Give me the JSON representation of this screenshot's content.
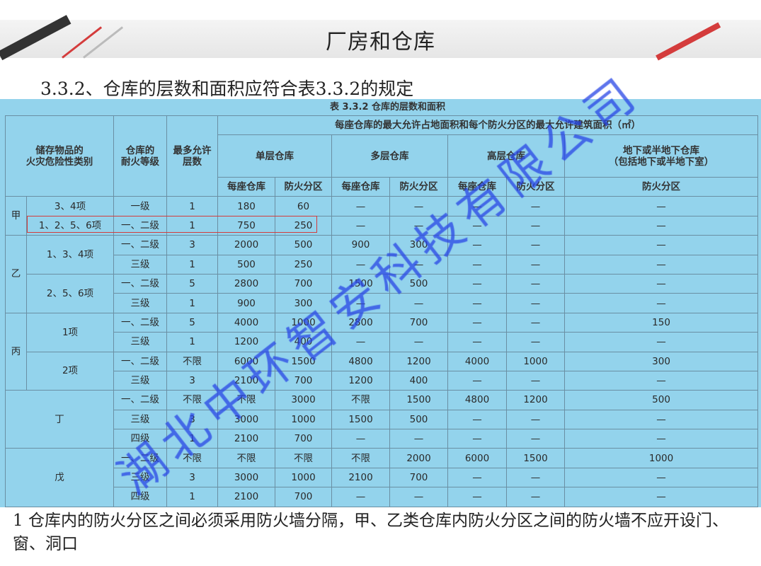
{
  "slide": {
    "title": "厂房和仓库",
    "subtitle": "3.3.2、仓库的层数和面积应符合表3.3.2的规定",
    "footer_note": "1 仓库内的防火分区之间必须采用防火墙分隔，甲、乙类仓库内防火分区之间的防火墙不应开设门、窗、洞口",
    "watermark": "湖北中环智安科技有限公司",
    "colors": {
      "accent_red": "#d43c3c",
      "table_bg": "#93d3ec",
      "watermark_blue": "#2846e6"
    }
  },
  "table": {
    "caption": "表 3.3.2   仓库的层数和面积",
    "headers": {
      "category": "储存物品的\n火灾危险性类别",
      "fire_grade": "仓库的\n耐火等级",
      "max_floors": "最多允许\n层数",
      "area_group": "每座仓库的最大允许占地面积和每个防火分区的最大允许建筑面积（㎡）",
      "single": "单层仓库",
      "multi": "多层仓库",
      "high": "高层仓库",
      "underground": "地下或半地下仓库\n（包括地下或半地下室）",
      "per_building": "每座仓库",
      "per_zone": "防火分区"
    },
    "groups": [
      {
        "category": "甲",
        "subs": [
          {
            "item": "3、4项",
            "rows": [
              [
                "一级",
                "1",
                "180",
                "60",
                "—",
                "—",
                "—",
                "—",
                "—"
              ]
            ]
          },
          {
            "item": "1、2、5、6项",
            "highlight": true,
            "rows": [
              [
                "一、二级",
                "1",
                "750",
                "250",
                "—",
                "—",
                "—",
                "—",
                "—"
              ]
            ]
          }
        ]
      },
      {
        "category": "乙",
        "subs": [
          {
            "item": "1、3、4项",
            "rows": [
              [
                "一、二级",
                "3",
                "2000",
                "500",
                "900",
                "300",
                "—",
                "—",
                "—"
              ],
              [
                "三级",
                "1",
                "500",
                "250",
                "—",
                "—",
                "—",
                "—",
                "—"
              ]
            ]
          },
          {
            "item": "2、5、6项",
            "rows": [
              [
                "一、二级",
                "5",
                "2800",
                "700",
                "1500",
                "500",
                "—",
                "—",
                "—"
              ],
              [
                "三级",
                "1",
                "900",
                "300",
                "—",
                "—",
                "—",
                "—",
                "—"
              ]
            ]
          }
        ]
      },
      {
        "category": "丙",
        "subs": [
          {
            "item": "1项",
            "rows": [
              [
                "一、二级",
                "5",
                "4000",
                "1000",
                "2800",
                "700",
                "—",
                "—",
                "150"
              ],
              [
                "三级",
                "1",
                "1200",
                "400",
                "—",
                "—",
                "—",
                "—",
                "—"
              ]
            ]
          },
          {
            "item": "2项",
            "rows": [
              [
                "一、二级",
                "不限",
                "6000",
                "1500",
                "4800",
                "1200",
                "4000",
                "1000",
                "300"
              ],
              [
                "三级",
                "3",
                "2100",
                "700",
                "1200",
                "400",
                "—",
                "—",
                "—"
              ]
            ]
          }
        ]
      },
      {
        "category": "丁",
        "subs": [
          {
            "item": "",
            "rows": [
              [
                "一、二级",
                "不限",
                "不限",
                "3000",
                "不限",
                "1500",
                "4800",
                "1200",
                "500"
              ],
              [
                "三级",
                "3",
                "3000",
                "1000",
                "1500",
                "500",
                "—",
                "—",
                "—"
              ],
              [
                "四级",
                "1",
                "2100",
                "700",
                "—",
                "—",
                "—",
                "—",
                "—"
              ]
            ]
          }
        ]
      },
      {
        "category": "戊",
        "subs": [
          {
            "item": "",
            "rows": [
              [
                "一、二级",
                "不限",
                "不限",
                "不限",
                "不限",
                "2000",
                "6000",
                "1500",
                "1000"
              ],
              [
                "三级",
                "3",
                "3000",
                "1000",
                "2100",
                "700",
                "—",
                "—",
                "—"
              ],
              [
                "四级",
                "1",
                "2100",
                "700",
                "—",
                "—",
                "—",
                "—",
                "—"
              ]
            ]
          }
        ]
      }
    ]
  }
}
